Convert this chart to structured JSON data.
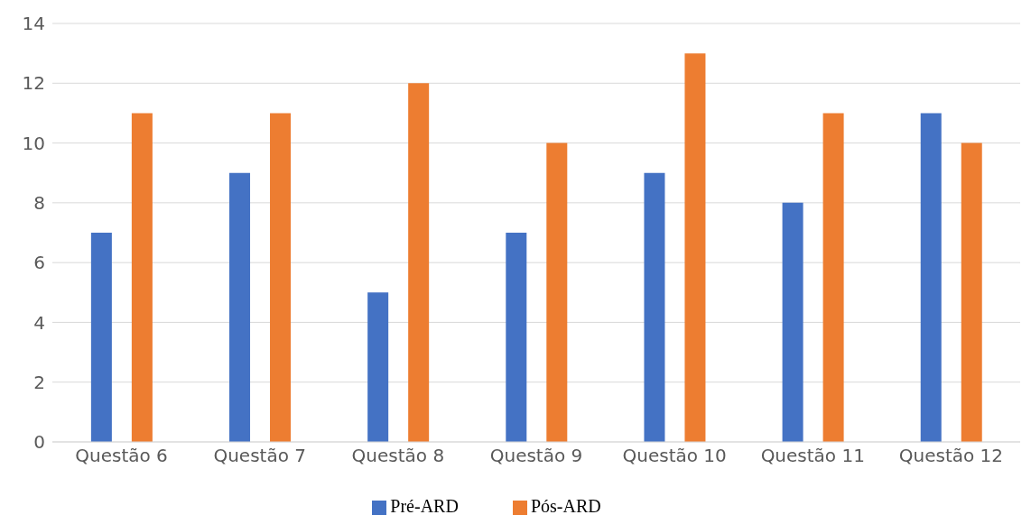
{
  "chart_data": {
    "type": "bar",
    "categories": [
      "Questão 6",
      "Questão 7",
      "Questão 8",
      "Questão 9",
      "Questão 10",
      "Questão 11",
      "Questão 12"
    ],
    "series": [
      {
        "name": "Pré-ARD",
        "color": "#4472c4",
        "values": [
          7,
          9,
          5,
          7,
          9,
          8,
          11
        ]
      },
      {
        "name": "Pós-ARD",
        "color": "#ed7d31",
        "values": [
          11,
          11,
          12,
          10,
          13,
          11,
          10
        ]
      }
    ],
    "ylim": [
      0,
      14
    ],
    "yticks": [
      0,
      2,
      4,
      6,
      8,
      10,
      12,
      14
    ],
    "grid": "y",
    "legend": "bottom"
  }
}
